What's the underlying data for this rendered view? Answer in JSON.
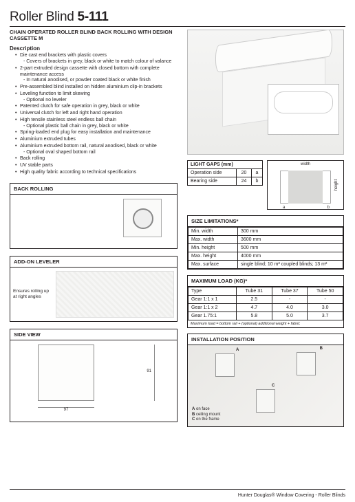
{
  "title_prefix": "Roller Blind ",
  "title_model": "5-111",
  "subtitle": "CHAIN OPERATED ROLLER BLIND BACK ROLLING WITH DESIGN CASSETTE M",
  "description_heading": "Description",
  "bullets": [
    {
      "t": "Die cast end brackets with plastic covers",
      "s": "- Covers of brackets in grey, black or white to match colour of valance"
    },
    {
      "t": "2-part extruded design cassette with closed bottom with complete maintenance access",
      "s": "- In natural anodised, or powder coated black or white finish"
    },
    {
      "t": "Pre-assembled blind installed on hidden aluminium clip-in brackets"
    },
    {
      "t": "Leveling function to limit skewing",
      "s": "- Optional no leveler"
    },
    {
      "t": "Patented clutch for safe operation in grey, black or white"
    },
    {
      "t": "Universal clutch for left and right hand operation"
    },
    {
      "t": "High tensile stainless steel endless ball chain",
      "s": "- Optional plastic ball chain in grey, black or white"
    },
    {
      "t": "Spring-loaded end plug for easy installation and maintenance"
    },
    {
      "t": "Aluminium extruded tubes"
    },
    {
      "t": "Aluminium extruded bottom rail, natural anodised, black or white",
      "s": "- Optional oval shaped bottom rail"
    },
    {
      "t": "Back rolling"
    },
    {
      "t": "UV stable parts"
    },
    {
      "t": "High quality fabric according to technical specifications"
    }
  ],
  "back_rolling_h": "BACK ROLLING",
  "addon_h": "ADD-ON LEVELER",
  "addon_text": "Ensures rolling up at right angles",
  "sideview_h": "SIDE VIEW",
  "sideview_dim_v": "91",
  "sideview_dim_h": "97",
  "light_gaps_h": "LIGHT GAPS (mm)",
  "light_gaps": {
    "rows": [
      {
        "label": "Operation side",
        "val": "20",
        "mark": "a"
      },
      {
        "label": "Bearing side",
        "val": "24",
        "mark": "b"
      }
    ],
    "width_label": "width",
    "height_label": "height",
    "a": "a",
    "b": "b"
  },
  "size_h": "SIZE LIMITATIONS*",
  "size_rows": [
    {
      "k": "Min. width",
      "v": "300 mm"
    },
    {
      "k": "Max. width",
      "v": "3600 mm"
    },
    {
      "k": "Min. height",
      "v": "500 mm"
    },
    {
      "k": "Max. height",
      "v": "4000 mm"
    },
    {
      "k": "Max. surface",
      "v": "single blind; 10 m²  coupled blinds; 13 m²"
    }
  ],
  "load_h": "MAXIMUM LOAD (KG)*",
  "load_cols": [
    "Type",
    "Tube 31",
    "Tube 37",
    "Tube 50"
  ],
  "load_rows": [
    [
      "Gear 1:1 x 1",
      "2.5",
      "-",
      "-"
    ],
    [
      "Gear 1:1 x 2",
      "4.7",
      "4.0",
      "3.0"
    ],
    [
      "Gear 1.75:1",
      "5.8",
      "5.0",
      "3.7"
    ]
  ],
  "load_note": "Maximum load = bottom rail + (optional) additional weight + fabric",
  "install_h": "INSTALLATION POSITION",
  "install_labels": {
    "A": "A",
    "B": "B",
    "C": "C"
  },
  "install_legend": [
    "A on face",
    "B ceiling mount",
    "C on the frame"
  ],
  "footer": "Hunter Douglas® Window Covering - Roller Blinds"
}
